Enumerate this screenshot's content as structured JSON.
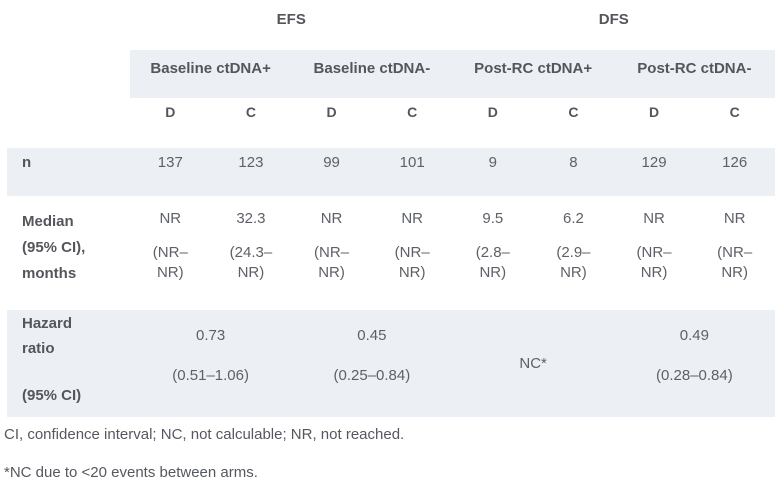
{
  "palette": {
    "band_background": "#ecf0f5",
    "heading_text": "#54565c",
    "body_text": "#5d6167"
  },
  "header": {
    "efs": "EFS",
    "dfs": "DFS"
  },
  "group_headers": [
    "Baseline ctDNA+",
    "Baseline ctDNA-",
    "Post-RC ctDNA+",
    "Post-RC ctDNA-"
  ],
  "subheaders": [
    "D",
    "C",
    "D",
    "C",
    "D",
    "C",
    "D",
    "C"
  ],
  "rows": {
    "n": {
      "label": "n",
      "values": [
        "137",
        "123",
        "99",
        "101",
        "9",
        "8",
        "129",
        "126"
      ]
    },
    "median": {
      "label_lines": [
        "Median",
        "(95% CI),",
        "months"
      ],
      "cells": [
        {
          "value": "NR",
          "ci1": "(NR–",
          "ci2": "NR)"
        },
        {
          "value": "32.3",
          "ci1": "(24.3–",
          "ci2": "NR)"
        },
        {
          "value": "NR",
          "ci1": "(NR–",
          "ci2": "NR)"
        },
        {
          "value": "NR",
          "ci1": "(NR–",
          "ci2": "NR)"
        },
        {
          "value": "9.5",
          "ci1": "(2.8–",
          "ci2": "NR)"
        },
        {
          "value": "6.2",
          "ci1": "(2.9–",
          "ci2": "NR)"
        },
        {
          "value": "NR",
          "ci1": "(NR–",
          "ci2": "NR)"
        },
        {
          "value": "NR",
          "ci1": "(NR–",
          "ci2": "NR)"
        }
      ]
    },
    "hazard": {
      "label_lines": [
        "Hazard",
        "ratio"
      ],
      "label_ci": "(95% CI)",
      "cells": [
        {
          "value": "0.73",
          "ci": "(0.51–1.06)"
        },
        {
          "value": "0.45",
          "ci": "(0.25–0.84)"
        },
        {
          "value": "NC*",
          "ci": ""
        },
        {
          "value": "0.49",
          "ci": "(0.28–0.84)"
        }
      ]
    }
  },
  "footnotes": [
    "CI, confidence interval; NC, not calculable; NR, not reached.",
    "*NC due to <20 events between arms."
  ]
}
